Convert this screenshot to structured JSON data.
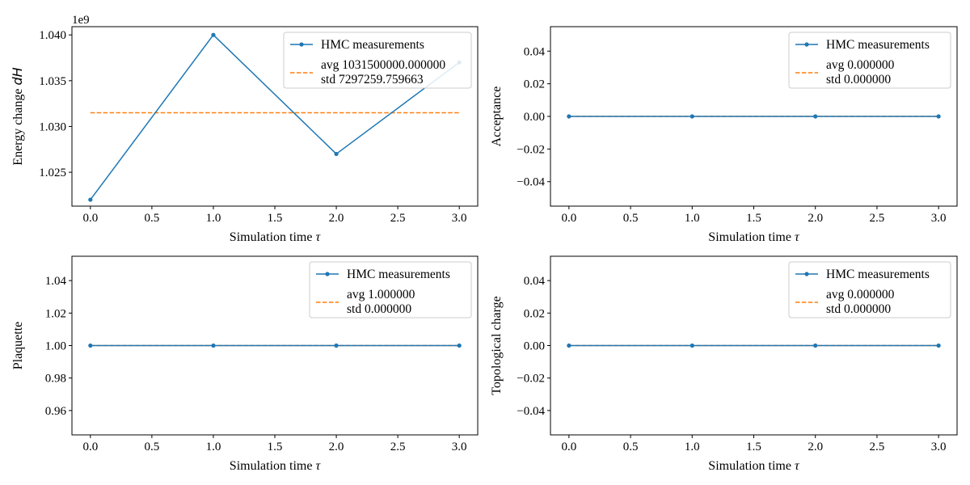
{
  "chart_data": [
    {
      "type": "line",
      "ylabel": "Energy change dH",
      "ylabel_main": "Energy change ",
      "ylabel_var": "dH",
      "xlabel_main": "Simulation time ",
      "xlabel_var": "τ",
      "xlim": [
        -0.15,
        3.15
      ],
      "ylim": [
        1021300000,
        1040900000
      ],
      "xticks": [
        0.0,
        0.5,
        1.0,
        1.5,
        2.0,
        2.5,
        3.0
      ],
      "xtick_labels": [
        "0.0",
        "0.5",
        "1.0",
        "1.5",
        "2.0",
        "2.5",
        "3.0"
      ],
      "yticks": [
        1025000000,
        1030000000,
        1035000000,
        1040000000
      ],
      "ytick_labels": [
        "1.025",
        "1.030",
        "1.035",
        "1.040"
      ],
      "offset_text": "1e9",
      "series": [
        {
          "name": "HMC measurements",
          "x": [
            0,
            1,
            2,
            3
          ],
          "y": [
            1022000000,
            1040000000,
            1027000000,
            1037000000
          ],
          "color": "#1f77b4"
        },
        {
          "name": "avg/std",
          "x": [
            0,
            3
          ],
          "y": [
            1031500000,
            1031500000
          ],
          "color": "#ff7f0e",
          "style": "dashed"
        }
      ],
      "legend": {
        "position": "upper right",
        "measure_label": "HMC measurements",
        "avg_label": "avg 1031500000.000000",
        "std_label": "std 7297259.759663"
      }
    },
    {
      "type": "line",
      "ylabel": "Acceptance",
      "ylabel_main": "Acceptance",
      "ylabel_var": "",
      "xlabel_main": "Simulation time ",
      "xlabel_var": "τ",
      "xlim": [
        -0.15,
        3.15
      ],
      "ylim": [
        -0.055,
        0.055
      ],
      "xticks": [
        0.0,
        0.5,
        1.0,
        1.5,
        2.0,
        2.5,
        3.0
      ],
      "xtick_labels": [
        "0.0",
        "0.5",
        "1.0",
        "1.5",
        "2.0",
        "2.5",
        "3.0"
      ],
      "yticks": [
        -0.04,
        -0.02,
        0.0,
        0.02,
        0.04
      ],
      "ytick_labels": [
        "−0.04",
        "−0.02",
        "0.00",
        "0.02",
        "0.04"
      ],
      "offset_text": "",
      "series": [
        {
          "name": "HMC measurements",
          "x": [
            0,
            1,
            2,
            3
          ],
          "y": [
            0,
            0,
            0,
            0
          ],
          "color": "#1f77b4"
        },
        {
          "name": "avg/std",
          "x": [
            0,
            3
          ],
          "y": [
            0,
            0
          ],
          "color": "#ff7f0e",
          "style": "dashed"
        }
      ],
      "legend": {
        "position": "upper right",
        "measure_label": "HMC measurements",
        "avg_label": "avg 0.000000",
        "std_label": "std 0.000000"
      }
    },
    {
      "type": "line",
      "ylabel": "Plaquette",
      "ylabel_main": "Plaquette",
      "ylabel_var": "",
      "xlabel_main": "Simulation time ",
      "xlabel_var": "τ",
      "xlim": [
        -0.15,
        3.15
      ],
      "ylim": [
        0.945,
        1.055
      ],
      "xticks": [
        0.0,
        0.5,
        1.0,
        1.5,
        2.0,
        2.5,
        3.0
      ],
      "xtick_labels": [
        "0.0",
        "0.5",
        "1.0",
        "1.5",
        "2.0",
        "2.5",
        "3.0"
      ],
      "yticks": [
        0.96,
        0.98,
        1.0,
        1.02,
        1.04
      ],
      "ytick_labels": [
        "0.96",
        "0.98",
        "1.00",
        "1.02",
        "1.04"
      ],
      "offset_text": "",
      "series": [
        {
          "name": "HMC measurements",
          "x": [
            0,
            1,
            2,
            3
          ],
          "y": [
            1,
            1,
            1,
            1
          ],
          "color": "#1f77b4"
        },
        {
          "name": "avg/std",
          "x": [
            0,
            3
          ],
          "y": [
            1,
            1
          ],
          "color": "#ff7f0e",
          "style": "dashed"
        }
      ],
      "legend": {
        "position": "upper right",
        "measure_label": "HMC measurements",
        "avg_label": "avg 1.000000",
        "std_label": "std 0.000000"
      }
    },
    {
      "type": "line",
      "ylabel": "Topological charge",
      "ylabel_main": "Topological charge",
      "ylabel_var": "",
      "xlabel_main": "Simulation time ",
      "xlabel_var": "τ",
      "xlim": [
        -0.15,
        3.15
      ],
      "ylim": [
        -0.055,
        0.055
      ],
      "xticks": [
        0.0,
        0.5,
        1.0,
        1.5,
        2.0,
        2.5,
        3.0
      ],
      "xtick_labels": [
        "0.0",
        "0.5",
        "1.0",
        "1.5",
        "2.0",
        "2.5",
        "3.0"
      ],
      "yticks": [
        -0.04,
        -0.02,
        0.0,
        0.02,
        0.04
      ],
      "ytick_labels": [
        "−0.04",
        "−0.02",
        "0.00",
        "0.02",
        "0.04"
      ],
      "offset_text": "",
      "series": [
        {
          "name": "HMC measurements",
          "x": [
            0,
            1,
            2,
            3
          ],
          "y": [
            0,
            0,
            0,
            0
          ],
          "color": "#1f77b4"
        },
        {
          "name": "avg/std",
          "x": [
            0,
            3
          ],
          "y": [
            0,
            0
          ],
          "color": "#ff7f0e",
          "style": "dashed"
        }
      ],
      "legend": {
        "position": "upper right",
        "measure_label": "HMC measurements",
        "avg_label": "avg 0.000000",
        "std_label": "std 0.000000"
      }
    }
  ]
}
